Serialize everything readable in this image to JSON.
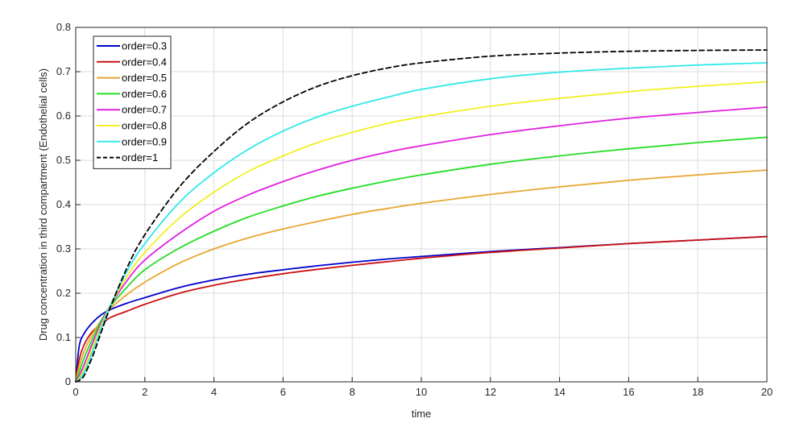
{
  "chart_data": {
    "type": "line",
    "title": "",
    "xlabel": "time",
    "ylabel": "Drug concentration in third compartment (Endothelial cells)",
    "xlim": [
      0,
      20
    ],
    "ylim": [
      0,
      0.8
    ],
    "x_ticks": [
      "0",
      "2",
      "4",
      "6",
      "8",
      "10",
      "12",
      "14",
      "16",
      "18",
      "20"
    ],
    "y_ticks": [
      "0",
      "0.1",
      "0.2",
      "0.3",
      "0.4",
      "0.5",
      "0.6",
      "0.7",
      "0.8"
    ],
    "grid": true,
    "legend_position": "top-left",
    "x": [
      0,
      0.1,
      0.25,
      0.5,
      0.75,
      1,
      1.5,
      2,
      3,
      4,
      5,
      6,
      7,
      8,
      9,
      10,
      12,
      14,
      16,
      18,
      20
    ],
    "series": [
      {
        "name": "order=0.3",
        "color": "#0000cc",
        "dash": "solid",
        "values": [
          0,
          0.08,
          0.11,
          0.135,
          0.152,
          0.163,
          0.178,
          0.19,
          0.213,
          0.23,
          0.243,
          0.253,
          0.262,
          0.27,
          0.277,
          0.283,
          0.294,
          0.303,
          0.312,
          0.32,
          0.328
        ]
      },
      {
        "name": "order=0.4",
        "color": "#cc1111",
        "dash": "solid",
        "values": [
          0,
          0.05,
          0.085,
          0.115,
          0.13,
          0.145,
          0.16,
          0.175,
          0.2,
          0.218,
          0.232,
          0.244,
          0.254,
          0.263,
          0.271,
          0.279,
          0.292,
          0.302,
          0.312,
          0.32,
          0.328
        ]
      },
      {
        "name": "order=0.5",
        "color": "#e8a630",
        "dash": "solid",
        "values": [
          0,
          0.035,
          0.07,
          0.11,
          0.14,
          0.165,
          0.198,
          0.225,
          0.268,
          0.3,
          0.325,
          0.345,
          0.362,
          0.378,
          0.391,
          0.403,
          0.423,
          0.44,
          0.455,
          0.467,
          0.478
        ]
      },
      {
        "name": "order=0.6",
        "color": "#22dd22",
        "dash": "solid",
        "values": [
          0,
          0.022,
          0.055,
          0.1,
          0.14,
          0.17,
          0.215,
          0.253,
          0.302,
          0.34,
          0.372,
          0.397,
          0.419,
          0.437,
          0.453,
          0.467,
          0.491,
          0.51,
          0.526,
          0.54,
          0.552
        ]
      },
      {
        "name": "order=0.7",
        "color": "#e020e0",
        "dash": "solid",
        "values": [
          0,
          0.013,
          0.04,
          0.09,
          0.135,
          0.172,
          0.23,
          0.275,
          0.335,
          0.385,
          0.422,
          0.452,
          0.478,
          0.5,
          0.518,
          0.533,
          0.558,
          0.578,
          0.595,
          0.608,
          0.62
        ]
      },
      {
        "name": "order=0.8",
        "color": "#f0f020",
        "dash": "solid",
        "values": [
          0,
          0.008,
          0.03,
          0.08,
          0.13,
          0.172,
          0.24,
          0.292,
          0.37,
          0.428,
          0.475,
          0.51,
          0.54,
          0.563,
          0.583,
          0.598,
          0.622,
          0.64,
          0.655,
          0.667,
          0.677
        ]
      },
      {
        "name": "order=0.9",
        "color": "#30e8e8",
        "dash": "solid",
        "values": [
          0,
          0.005,
          0.022,
          0.07,
          0.124,
          0.172,
          0.252,
          0.312,
          0.405,
          0.472,
          0.525,
          0.566,
          0.598,
          0.622,
          0.642,
          0.66,
          0.684,
          0.699,
          0.708,
          0.715,
          0.72
        ]
      },
      {
        "name": "order=1",
        "color": "#000000",
        "dash": "dashed",
        "values": [
          0,
          0.003,
          0.015,
          0.06,
          0.115,
          0.168,
          0.26,
          0.332,
          0.44,
          0.52,
          0.585,
          0.632,
          0.667,
          0.691,
          0.708,
          0.72,
          0.735,
          0.742,
          0.746,
          0.748,
          0.749
        ]
      }
    ]
  }
}
